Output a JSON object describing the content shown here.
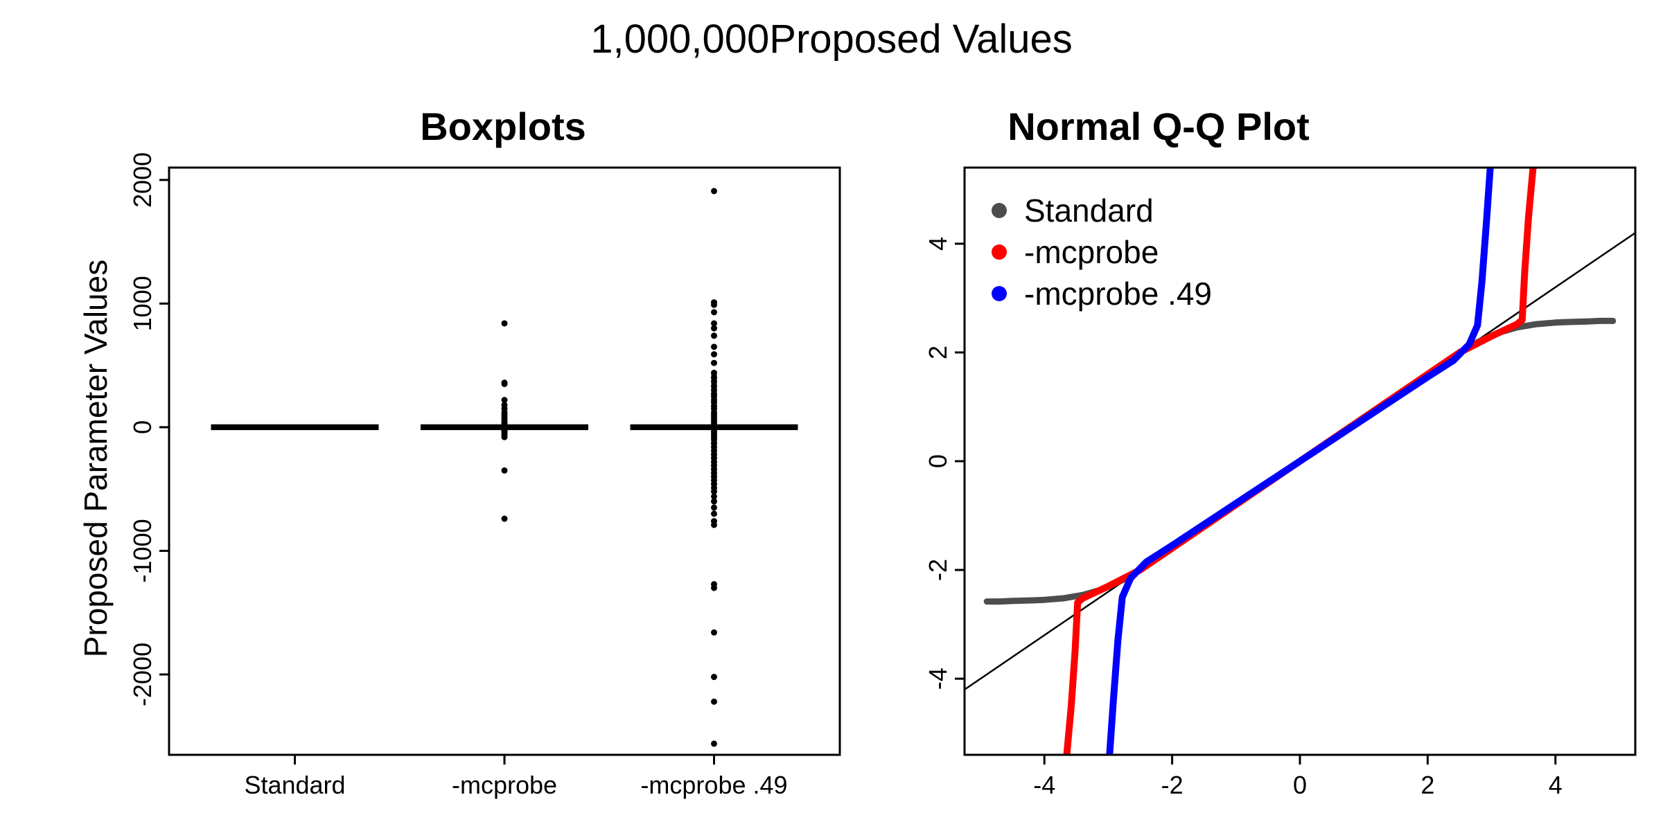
{
  "title": "1,000,000Proposed Values",
  "colors": {
    "standard": "#4d4d4d",
    "mcprobe": "#ff0000",
    "mcprobe49": "#0000ff",
    "ink": "#000000"
  },
  "chart_data": [
    {
      "type": "box",
      "title": "Boxplots",
      "ylabel": "Proposed Parameter Values",
      "ylim": [
        -2650,
        2100
      ],
      "yticks": [
        -2000,
        -1000,
        0,
        1000,
        2000
      ],
      "categories": [
        "Standard",
        "-mcprobe",
        "-mcprobe .49"
      ],
      "groups": [
        {
          "name": "Standard",
          "median": 0,
          "q1": -1,
          "q3": 1,
          "whisker_low": -3,
          "whisker_high": 3,
          "outliers": []
        },
        {
          "name": "-mcprobe",
          "median": 0,
          "q1": -1,
          "q3": 1,
          "whisker_low": -3,
          "whisker_high": 3,
          "outliers": [
            840,
            360,
            350,
            220,
            180,
            150,
            120,
            100,
            80,
            60,
            40,
            30,
            20,
            -20,
            -30,
            -40,
            -60,
            -80,
            -350,
            -740
          ]
        },
        {
          "name": "-mcprobe .49",
          "median": 0,
          "q1": -1,
          "q3": 1,
          "whisker_low": -3,
          "whisker_high": 3,
          "outliers": [
            1910,
            1010,
            990,
            930,
            840,
            800,
            740,
            650,
            590,
            520,
            440,
            400,
            370,
            330,
            300,
            270,
            250,
            220,
            200,
            170,
            150,
            120,
            100,
            80,
            60,
            40,
            20,
            -20,
            -40,
            -60,
            -80,
            -100,
            -130,
            -160,
            -190,
            -220,
            -250,
            -280,
            -310,
            -340,
            -370,
            -400,
            -430,
            -460,
            -490,
            -520,
            -560,
            -600,
            -650,
            -700,
            -760,
            -790,
            -1270,
            -1300,
            -1660,
            -2020,
            -2220,
            -2560
          ]
        }
      ]
    },
    {
      "type": "scatter",
      "title": "Normal Q-Q Plot",
      "xlabel": "",
      "ylabel": "",
      "xlim": [
        -5.25,
        5.25
      ],
      "ylim": [
        -5.4,
        5.4
      ],
      "xticks": [
        -4,
        -2,
        0,
        2,
        4
      ],
      "yticks": [
        -4,
        -2,
        0,
        2,
        4
      ],
      "legend": {
        "position": "top-left",
        "entries": [
          "Standard",
          "-mcprobe",
          "-mcprobe .49"
        ]
      },
      "reference_line": {
        "slope": 0.8,
        "intercept": 0
      },
      "series": [
        {
          "name": "Standard",
          "color": "#4d4d4d",
          "points": [
            [
              -4.9,
              -2.58
            ],
            [
              -4.7,
              -2.58
            ],
            [
              -4.5,
              -2.57
            ],
            [
              -4.2,
              -2.56
            ],
            [
              -4.0,
              -2.55
            ],
            [
              -3.7,
              -2.52
            ],
            [
              -3.4,
              -2.46
            ],
            [
              -3.1,
              -2.36
            ],
            [
              -2.8,
              -2.2
            ],
            [
              -2.5,
              -2.0
            ],
            [
              -2.0,
              -1.6
            ],
            [
              0,
              0
            ],
            [
              2.0,
              1.6
            ],
            [
              2.5,
              2.0
            ],
            [
              2.8,
              2.2
            ],
            [
              3.1,
              2.36
            ],
            [
              3.4,
              2.46
            ],
            [
              3.7,
              2.52
            ],
            [
              4.0,
              2.55
            ],
            [
              4.2,
              2.56
            ],
            [
              4.5,
              2.57
            ],
            [
              4.7,
              2.58
            ],
            [
              4.9,
              2.58
            ]
          ]
        },
        {
          "name": "-mcprobe",
          "color": "#ff0000",
          "points": [
            [
              -3.65,
              -5.4
            ],
            [
              -3.58,
              -4.5
            ],
            [
              -3.52,
              -3.5
            ],
            [
              -3.48,
              -2.6
            ],
            [
              -3.4,
              -2.52
            ],
            [
              -3.0,
              -2.3
            ],
            [
              -2.5,
              -2.0
            ],
            [
              -2.0,
              -1.6
            ],
            [
              0,
              0
            ],
            [
              2.0,
              1.6
            ],
            [
              2.5,
              2.0
            ],
            [
              3.0,
              2.3
            ],
            [
              3.4,
              2.52
            ],
            [
              3.48,
              2.6
            ],
            [
              3.52,
              3.5
            ],
            [
              3.58,
              4.5
            ],
            [
              3.65,
              5.4
            ]
          ]
        },
        {
          "name": "-mcprobe .49",
          "color": "#0000ff",
          "points": [
            [
              -2.98,
              -5.4
            ],
            [
              -2.92,
              -4.4
            ],
            [
              -2.85,
              -3.3
            ],
            [
              -2.78,
              -2.5
            ],
            [
              -2.65,
              -2.15
            ],
            [
              -2.4,
              -1.85
            ],
            [
              -2.0,
              -1.55
            ],
            [
              0,
              0
            ],
            [
              2.0,
              1.55
            ],
            [
              2.4,
              1.85
            ],
            [
              2.65,
              2.15
            ],
            [
              2.78,
              2.5
            ],
            [
              2.85,
              3.3
            ],
            [
              2.92,
              4.4
            ],
            [
              2.98,
              5.4
            ]
          ]
        }
      ]
    }
  ]
}
